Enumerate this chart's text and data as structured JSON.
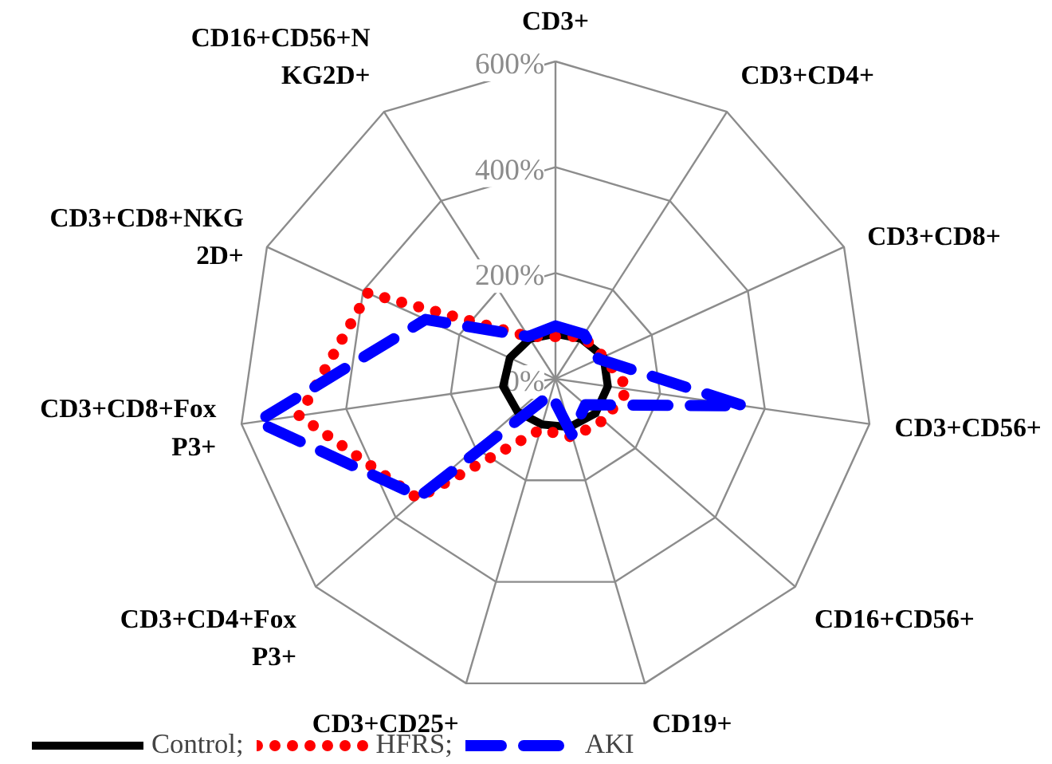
{
  "chart_data": {
    "type": "radar",
    "categories": [
      "CD3+",
      "CD3+CD4+",
      "CD3+CD8+",
      "CD3+CD56+",
      "CD16+CD56+",
      "CD19+",
      "CD3+CD25+",
      "CD3+CD4+FoxP3+",
      "CD3+CD8+FoxP3+",
      "CD3+CD8+NKG2D+",
      "CD16+CD56+NKG2D+"
    ],
    "ylim": [
      0,
      600
    ],
    "yticks": [
      {
        "value": 0,
        "label": "0%"
      },
      {
        "value": 200,
        "label": "200%"
      },
      {
        "value": 400,
        "label": "400%"
      },
      {
        "value": 600,
        "label": "600%"
      }
    ],
    "grid": true,
    "legend": "bottom",
    "series": [
      {
        "name": "Control;",
        "color": "#000000",
        "line_style": "solid",
        "values": [
          85,
          90,
          100,
          100,
          100,
          95,
          90,
          95,
          100,
          95,
          90
        ]
      },
      {
        "name": "HFRS;",
        "color": "#ff0000",
        "line_style": "dotted",
        "values": [
          80,
          95,
          100,
          140,
          120,
          115,
          100,
          345,
          490,
          390,
          95
        ]
      },
      {
        "name": "AKI",
        "color": "#0000ff",
        "line_style": "dashed",
        "values": [
          100,
          100,
          90,
          360,
          75,
          110,
          30,
          340,
          570,
          270,
          95
        ]
      }
    ]
  }
}
